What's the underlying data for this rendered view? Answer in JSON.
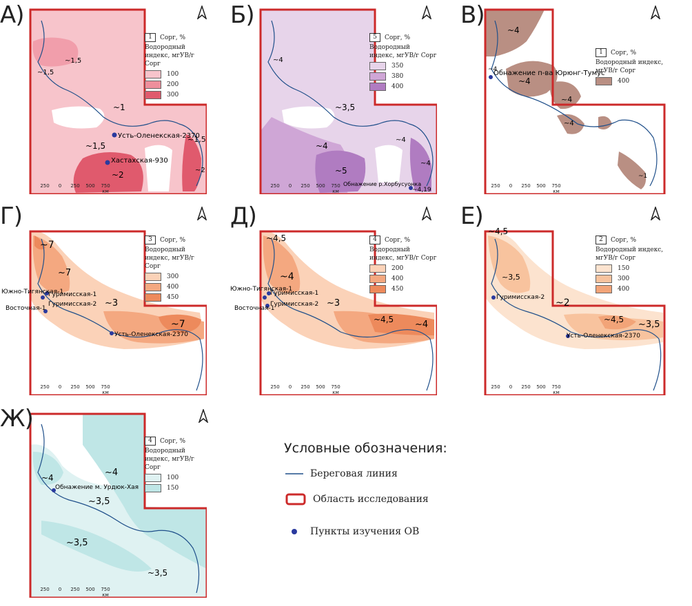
{
  "colors": {
    "coast": "#1f4f8a",
    "study_area": "#cc2a2a",
    "point": "#2a3a9e"
  },
  "panels": [
    {
      "id": "A",
      "label": "А)",
      "legend": {
        "box_value": "1",
        "corg_label": "Сорг, %",
        "hi_label": "Водородный индекс, мгУВ/г Сорг",
        "items": [
          {
            "value": "100",
            "color": "#f7c4cb"
          },
          {
            "value": "200",
            "color": "#ee8f9c"
          },
          {
            "value": "300",
            "color": "#e05a6d"
          }
        ]
      },
      "map_labels": [
        "~1,5",
        "~1,5",
        "~1",
        "~1,5",
        "~1,5",
        "~2",
        "~2"
      ],
      "points": [
        "Усть-Оленекская-2370",
        "Хастахская-930"
      ],
      "scale_ticks": [
        "250",
        "0",
        "250",
        "500",
        "750 км"
      ]
    },
    {
      "id": "B",
      "label": "Б)",
      "legend": {
        "box_value": "5",
        "corg_label": "Сорг, %",
        "hi_label": "Водородный индекс, мгУВ/г Сорг",
        "items": [
          {
            "value": "350",
            "color": "#e7d4ea"
          },
          {
            "value": "380",
            "color": "#cfa6d6"
          },
          {
            "value": "400",
            "color": "#b07cc1"
          }
        ]
      },
      "map_labels": [
        "~4",
        "~3,5",
        "~4",
        "~5",
        "~4",
        "~4",
        "~4,19"
      ],
      "points": [
        "Обнажение р.Хорбусуонка"
      ],
      "scale_ticks": [
        "250",
        "0",
        "250",
        "500",
        "750 км"
      ]
    },
    {
      "id": "V",
      "label": "В)",
      "legend": {
        "box_value": "1",
        "corg_label": "Сорг, %",
        "hi_label": "Водородный индекс, мгУВ/г Сорг",
        "items": [
          {
            "value": "400",
            "color": "#b98f83"
          }
        ]
      },
      "map_labels": [
        "~4",
        "~4",
        "~4",
        "~4",
        "~4",
        "~1"
      ],
      "points": [
        "Обнажение п-ва Юрюнг-Тумус"
      ],
      "scale_ticks": [
        "250",
        "0",
        "250",
        "500",
        "750 км"
      ]
    },
    {
      "id": "G",
      "label": "Г)",
      "legend": {
        "box_value": "3",
        "corg_label": "Сорг, %",
        "hi_label": "Водородный индекс, мгУВ/г Сорг",
        "items": [
          {
            "value": "300",
            "color": "#fbd2b8"
          },
          {
            "value": "400",
            "color": "#f4a880"
          },
          {
            "value": "450",
            "color": "#ed8a5c"
          }
        ]
      },
      "map_labels": [
        "~7",
        "~7",
        "~3",
        "~7"
      ],
      "points": [
        "Южно-Тигянская-1",
        "Гуримисская-1",
        "Гуримисская-2",
        "Восточная-1",
        "Усть-Оленекская-2370"
      ],
      "scale_ticks": [
        "250",
        "0",
        "250",
        "500",
        "750 км"
      ]
    },
    {
      "id": "D",
      "label": "Д)",
      "legend": {
        "box_value": "4",
        "corg_label": "Сорг, %",
        "hi_label": "Водородный индекс, мгУВ/г Сорг",
        "items": [
          {
            "value": "200",
            "color": "#fbd2b8"
          },
          {
            "value": "400",
            "color": "#f4a880"
          },
          {
            "value": "450",
            "color": "#ed8a5c"
          }
        ]
      },
      "map_labels": [
        "~4,5",
        "~4",
        "~3",
        "~4,5",
        "~4"
      ],
      "points": [
        "Южно-Тигянская-1",
        "Гуримисская-1",
        "Гуримисская-2",
        "Восточная-1"
      ],
      "scale_ticks": [
        "250",
        "0",
        "250",
        "500",
        "750 км"
      ]
    },
    {
      "id": "E",
      "label": "Е)",
      "legend": {
        "box_value": "2",
        "corg_label": "Сорг, %",
        "hi_label": "Водородный индекс, мгУВ/г Сорг",
        "items": [
          {
            "value": "150",
            "color": "#fce3cf"
          },
          {
            "value": "300",
            "color": "#f8c39e"
          },
          {
            "value": "400",
            "color": "#f2a478"
          }
        ]
      },
      "map_labels": [
        "~4,5",
        "~3,5",
        "~2",
        "~4,5",
        "~3,5"
      ],
      "points": [
        "Гуримисская-2",
        "Усть-Оленекская-2370"
      ],
      "scale_ticks": [
        "250",
        "0",
        "250",
        "500",
        "750 км"
      ]
    },
    {
      "id": "ZH",
      "label": "Ж)",
      "legend": {
        "box_value": "4",
        "corg_label": "Сорг, %",
        "hi_label": "Водородный индекс, мгУВ/г Сорг",
        "items": [
          {
            "value": "100",
            "color": "#dff2f2"
          },
          {
            "value": "150",
            "color": "#bfe6e6"
          }
        ]
      },
      "map_labels": [
        "~4",
        "~4",
        "~3,5",
        "~3,5",
        "~3,5"
      ],
      "points": [
        "Обнажение м. Урдюк-Хая"
      ],
      "scale_ticks": [
        "250",
        "0",
        "250",
        "500",
        "750 км"
      ]
    }
  ],
  "legend": {
    "title": "Условные обозначения:",
    "coastline": "Береговая линия",
    "study_area": "Область исследования",
    "points": "Пункты изучения ОВ"
  }
}
